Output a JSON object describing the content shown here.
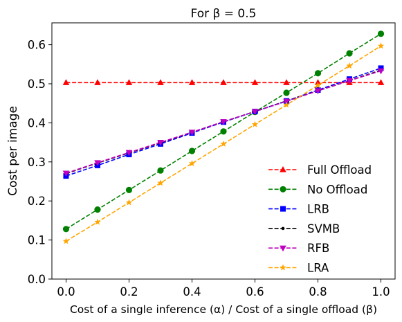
{
  "chart_data": {
    "type": "line",
    "title": "For β = 0.5",
    "xlabel": "Cost of a single inference (α) / Cost of a single offload (β)",
    "ylabel": "Cost per image",
    "xlim": [
      -0.045,
      1.045
    ],
    "ylim": [
      0.0,
      0.656
    ],
    "xticks": [
      0.0,
      0.2,
      0.4,
      0.6,
      0.8,
      1.0
    ],
    "xtick_labels": [
      "0.0",
      "0.2",
      "0.4",
      "0.6",
      "0.8",
      "1.0"
    ],
    "yticks": [
      0.0,
      0.1,
      0.2,
      0.3,
      0.4,
      0.5,
      0.6
    ],
    "ytick_labels": [
      "0.0",
      "0.1",
      "0.2",
      "0.3",
      "0.4",
      "0.5",
      "0.6"
    ],
    "grid": false,
    "legend_position": "lower-right",
    "x": [
      0.0,
      0.1,
      0.2,
      0.3,
      0.4,
      0.5,
      0.6,
      0.7,
      0.8,
      0.9,
      1.0
    ],
    "series": [
      {
        "name": "Full Offload",
        "color": "#ff0000",
        "marker": "triangle-up",
        "values": [
          0.503,
          0.503,
          0.503,
          0.503,
          0.503,
          0.503,
          0.503,
          0.503,
          0.503,
          0.503,
          0.503
        ]
      },
      {
        "name": "No Offload",
        "color": "#008000",
        "marker": "circle",
        "values": [
          0.128,
          0.178,
          0.228,
          0.278,
          0.328,
          0.378,
          0.428,
          0.477,
          0.527,
          0.578,
          0.628
        ]
      },
      {
        "name": "LRB",
        "color": "#0000ff",
        "marker": "square",
        "values": [
          0.264,
          0.291,
          0.319,
          0.346,
          0.374,
          0.402,
          0.429,
          0.456,
          0.484,
          0.512,
          0.54
        ]
      },
      {
        "name": "SVMB",
        "color": "#000000",
        "marker": "point",
        "values": [
          0.27,
          0.297,
          0.323,
          0.349,
          0.376,
          0.403,
          0.429,
          0.456,
          0.482,
          0.508,
          0.535
        ]
      },
      {
        "name": "RFB",
        "color": "#bf00bf",
        "marker": "triangle-down",
        "values": [
          0.271,
          0.298,
          0.324,
          0.35,
          0.376,
          0.403,
          0.429,
          0.455,
          0.482,
          0.508,
          0.533
        ]
      },
      {
        "name": "LRA",
        "color": "#ffa500",
        "marker": "star",
        "values": [
          0.097,
          0.146,
          0.196,
          0.246,
          0.296,
          0.346,
          0.396,
          0.446,
          0.496,
          0.546,
          0.597
        ]
      }
    ]
  }
}
